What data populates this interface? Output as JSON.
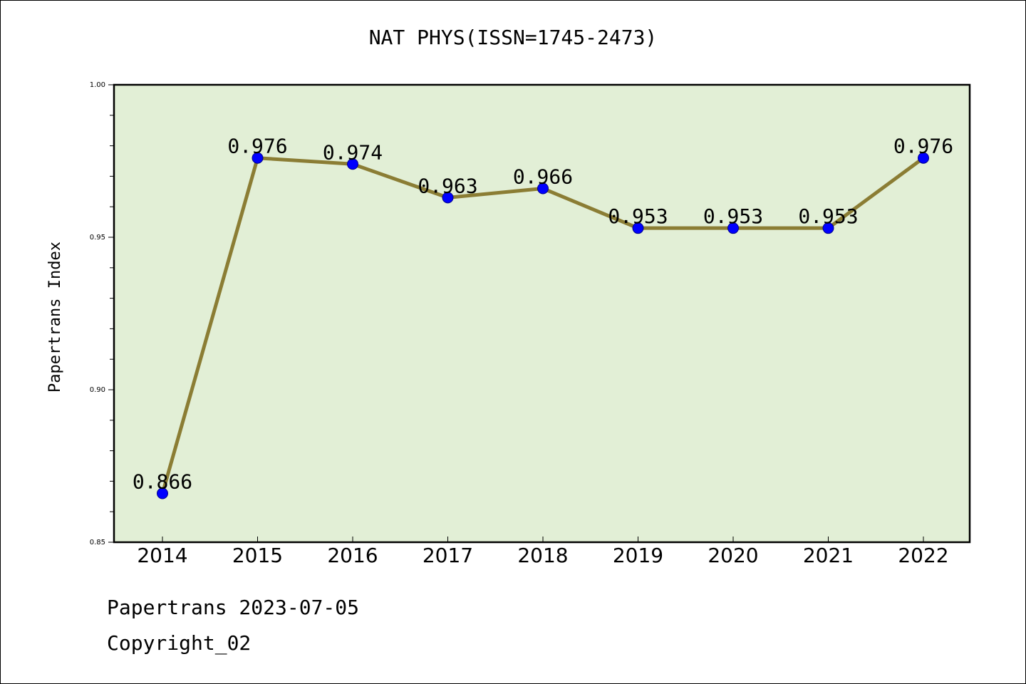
{
  "chart_data": {
    "type": "line",
    "title": "NAT PHYS(ISSN=1745-2473)",
    "xlabel": "",
    "ylabel": "Papertrans Index",
    "categories": [
      "2014",
      "2015",
      "2016",
      "2017",
      "2018",
      "2019",
      "2020",
      "2021",
      "2022"
    ],
    "values": [
      0.866,
      0.976,
      0.974,
      0.963,
      0.966,
      0.953,
      0.953,
      0.953,
      0.976
    ],
    "data_labels": [
      "0.866",
      "0.976",
      "0.974",
      "0.963",
      "0.966",
      "0.953",
      "0.953",
      "0.953",
      "0.976"
    ],
    "ylim": [
      0.85,
      1.0
    ],
    "yticks": [
      "0.85",
      "0.90",
      "0.95",
      "1.00"
    ],
    "grid": false,
    "colors": {
      "plot_background": "#e2efd6",
      "line": "#8b7d34",
      "marker": "#0000ff"
    }
  },
  "footer": {
    "date_text": "Papertrans 2023-07-05",
    "copyright_text": "Copyright_02"
  }
}
